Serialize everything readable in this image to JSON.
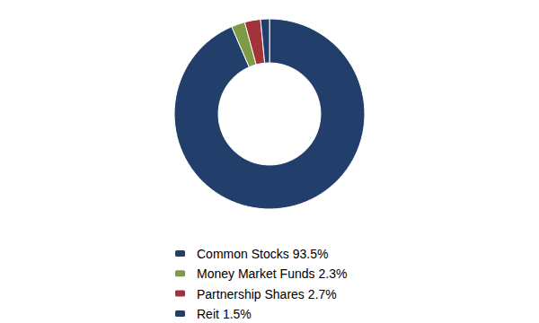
{
  "chart_data": {
    "type": "donut",
    "categories": [
      "Common Stocks",
      "Money Market Funds",
      "Partnership Shares",
      "Reit"
    ],
    "values": [
      93.5,
      2.3,
      2.7,
      1.5
    ],
    "value_labels": [
      "93.5%",
      "2.3%",
      "2.7%",
      "1.5%"
    ],
    "colors": [
      "#223f6c",
      "#7d9a46",
      "#a3333a",
      "#223f6c"
    ],
    "legend": "bottom"
  }
}
